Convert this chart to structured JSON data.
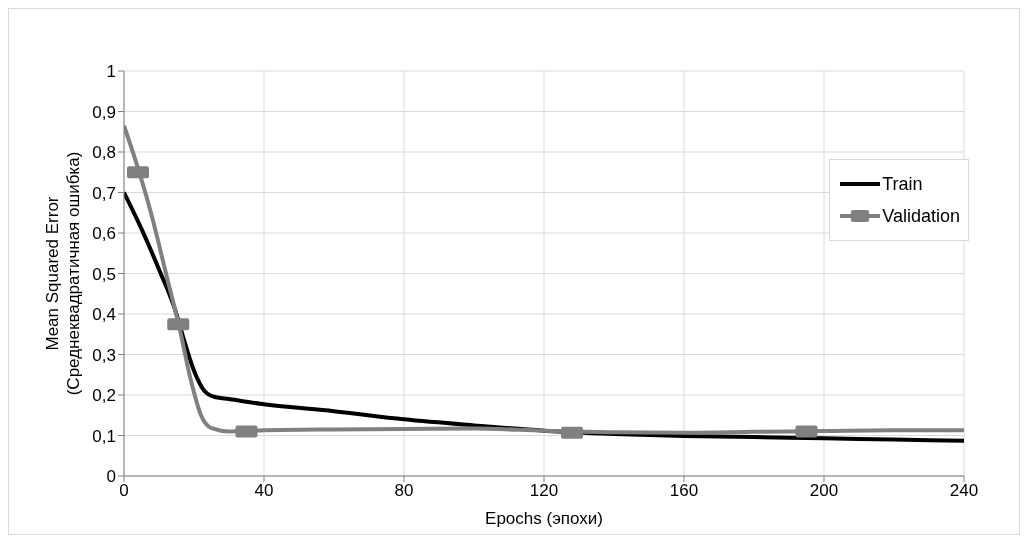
{
  "chart_data": {
    "type": "line",
    "xlabel": "Epochs (эпохи)",
    "ylabel": "Mean Squared Error\n(Среднеквадратичная ошибка)",
    "xlim": [
      0,
      240
    ],
    "xticks": [
      0,
      40,
      80,
      120,
      160,
      200,
      240
    ],
    "ylim": [
      0,
      1
    ],
    "yticks": [
      0,
      {
        "value": 0.1,
        "label": "0,1"
      },
      {
        "value": 0.2,
        "label": "0,2"
      },
      {
        "value": 0.3,
        "label": "0,3"
      },
      {
        "value": 0.4,
        "label": "0,4"
      },
      {
        "value": 0.5,
        "label": "0,5"
      },
      {
        "value": 0.6,
        "label": "0,6"
      },
      {
        "value": 0.7,
        "label": "0,7"
      },
      {
        "value": 0.8,
        "label": "0,8"
      },
      {
        "value": 0.9,
        "label": "0,9"
      },
      1
    ],
    "grid": true,
    "legend": "right",
    "line_style": "solid",
    "series": [
      {
        "name": "Train",
        "color": "#000000",
        "x": [
          0,
          5,
          10,
          15,
          17,
          20,
          23,
          26,
          30,
          40,
          60,
          80,
          100,
          120,
          140,
          160,
          180,
          200,
          220,
          240
        ],
        "values": [
          0.7,
          0.61,
          0.51,
          0.4,
          0.34,
          0.26,
          0.21,
          0.195,
          0.19,
          0.177,
          0.16,
          0.14,
          0.125,
          0.112,
          0.104,
          0.099,
          0.096,
          0.093,
          0.09,
          0.087
        ]
      },
      {
        "name": "Validation",
        "color": "#808080",
        "x": [
          0,
          4,
          8,
          12,
          16,
          19,
          22,
          25,
          30,
          40,
          60,
          80,
          100,
          120,
          140,
          160,
          180,
          200,
          220,
          240
        ],
        "values": [
          0.865,
          0.76,
          0.64,
          0.5,
          0.36,
          0.24,
          0.15,
          0.118,
          0.11,
          0.113,
          0.115,
          0.116,
          0.117,
          0.112,
          0.108,
          0.107,
          0.109,
          0.111,
          0.113,
          0.113
        ]
      },
      {
        "type": "scatter",
        "color": "#808080",
        "marker": "square",
        "x": [
          4,
          15.5,
          35,
          128,
          195
        ],
        "values": [
          0.75,
          0.375,
          0.11,
          0.107,
          0.11
        ]
      }
    ]
  }
}
